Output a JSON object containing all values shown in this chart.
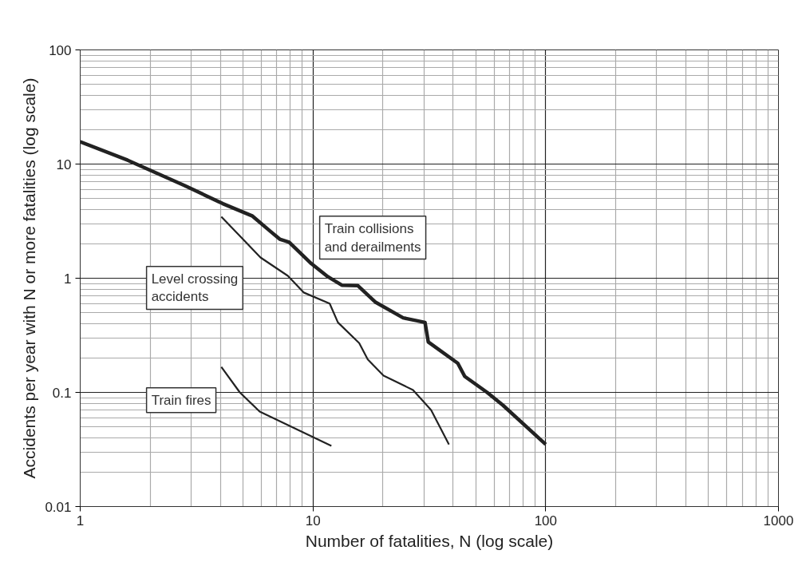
{
  "chart_data": {
    "type": "line",
    "xlabel": "Number of fatalities, N (log scale)",
    "ylabel": "Accidents per year with N or more fatalities (log scale)",
    "log": "xy",
    "grid": true,
    "marker": "none",
    "line_style": "solid",
    "xlim": [
      1,
      1000
    ],
    "ylim": [
      0.01,
      100
    ],
    "xticks": [
      1,
      10,
      100,
      1000
    ],
    "yticks": [
      0.01,
      0.1,
      1,
      10,
      100
    ],
    "series": [
      {
        "name": "Train collisions\nand derailments",
        "color": "#222222",
        "x": [
          1,
          1.6,
          2.8,
          4.1,
          5.5,
          6.6,
          7.2,
          7.9,
          9.85,
          11.6,
          12.5,
          13.3,
          15.6,
          18.5,
          24.4,
          30.3,
          31.3,
          41.9,
          44.9,
          56,
          65.6,
          100
        ],
        "values": [
          15.7,
          10.8,
          6.5,
          4.5,
          3.5,
          2.55,
          2.2,
          2.07,
          1.34,
          1.03,
          0.94,
          0.87,
          0.86,
          0.62,
          0.45,
          0.41,
          0.276,
          0.18,
          0.138,
          0.1,
          0.077,
          0.035
        ]
      },
      {
        "name": "Level crossing\naccidents",
        "color": "#222222",
        "x": [
          4.04,
          4.85,
          5.95,
          7.8,
          9.12,
          11.8,
          12.8,
          15.8,
          17.2,
          20.1,
          26.9,
          32.2,
          38.4
        ],
        "values": [
          3.45,
          2.35,
          1.52,
          1.05,
          0.75,
          0.6,
          0.41,
          0.27,
          0.194,
          0.14,
          0.105,
          0.07,
          0.035
        ]
      },
      {
        "name": "Train fires",
        "color": "#222222",
        "x": [
          4.04,
          4.85,
          5.9,
          12
        ],
        "values": [
          0.167,
          0.1,
          0.068,
          0.034
        ]
      }
    ]
  }
}
